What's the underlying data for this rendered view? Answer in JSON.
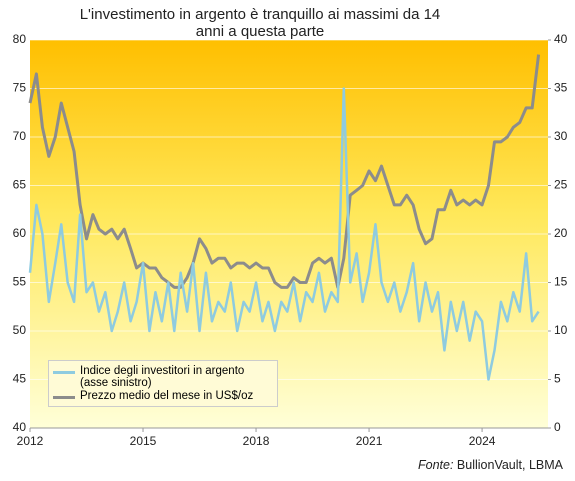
{
  "chart_data": {
    "type": "line",
    "title": "L'investimento in argento è tranquillo ai massimi da 14 anni a questa parte",
    "source_label": "Fonte:",
    "source": "BullionVault, LBMA",
    "x": [
      2012.0,
      2012.17,
      2012.33,
      2012.5,
      2012.67,
      2012.83,
      2013.0,
      2013.17,
      2013.33,
      2013.5,
      2013.67,
      2013.83,
      2014.0,
      2014.17,
      2014.33,
      2014.5,
      2014.67,
      2014.83,
      2015.0,
      2015.17,
      2015.33,
      2015.5,
      2015.67,
      2015.83,
      2016.0,
      2016.17,
      2016.33,
      2016.5,
      2016.67,
      2016.83,
      2017.0,
      2017.17,
      2017.33,
      2017.5,
      2017.67,
      2017.83,
      2018.0,
      2018.17,
      2018.33,
      2018.5,
      2018.67,
      2018.83,
      2019.0,
      2019.17,
      2019.33,
      2019.5,
      2019.67,
      2019.83,
      2020.0,
      2020.17,
      2020.33,
      2020.5,
      2020.67,
      2020.83,
      2021.0,
      2021.17,
      2021.33,
      2021.5,
      2021.67,
      2021.83,
      2022.0,
      2022.17,
      2022.33,
      2022.5,
      2022.67,
      2022.83,
      2023.0,
      2023.17,
      2023.33,
      2023.5,
      2023.67,
      2023.83,
      2024.0,
      2024.17,
      2024.33,
      2024.5,
      2024.67,
      2024.83,
      2025.0,
      2025.17,
      2025.33,
      2025.5
    ],
    "series": [
      {
        "name": "Indice degli investitori in argento (asse sinistro)",
        "color": "#8ecbe0",
        "axis": "y",
        "values": [
          56,
          63,
          60,
          53,
          57,
          61,
          55,
          53,
          62,
          54,
          55,
          52,
          54,
          50,
          52,
          55,
          51,
          53,
          57,
          50,
          54,
          51,
          55,
          50,
          56,
          52,
          57,
          50,
          56,
          51,
          53,
          52,
          55,
          50,
          53,
          52,
          55,
          51,
          53,
          50,
          53,
          52,
          55,
          51,
          54,
          53,
          56,
          52,
          54,
          53,
          75,
          55,
          58,
          53,
          56,
          61,
          55,
          53,
          55,
          52,
          54,
          57,
          51,
          55,
          52,
          54,
          48,
          53,
          50,
          53,
          49,
          52,
          51,
          45,
          48,
          53,
          51,
          54,
          52,
          58,
          51,
          52
        ]
      },
      {
        "name": "Prezzo medio del mese in US$/oz",
        "color": "#8c8c8c",
        "axis": "y2",
        "values": [
          33.5,
          36.5,
          31,
          28,
          30,
          33.5,
          31,
          28.5,
          23,
          19.5,
          22,
          20.5,
          20,
          20.5,
          19.5,
          20.5,
          18.5,
          16.5,
          17,
          16.5,
          16.5,
          15.5,
          15,
          14.5,
          14.5,
          15.5,
          17,
          19.5,
          18.5,
          17,
          17.5,
          17.5,
          16.5,
          17,
          17,
          16.5,
          17,
          16.5,
          16.5,
          15,
          14.5,
          14.5,
          15.5,
          15,
          15,
          17,
          17.5,
          17,
          17.5,
          14.5,
          17.5,
          24,
          24.5,
          25,
          26.5,
          25.5,
          27,
          25,
          23,
          23,
          24,
          23,
          20.5,
          19,
          19.5,
          22.5,
          22.5,
          24.5,
          23,
          23.5,
          23,
          23.5,
          23,
          25,
          29.5,
          29.5,
          30,
          31,
          31.5,
          33,
          33,
          38.5
        ]
      }
    ],
    "xlim": [
      2012,
      2025.75
    ],
    "xticks": [
      2012,
      2015,
      2018,
      2021,
      2024
    ],
    "ylim": [
      40,
      80
    ],
    "yticks": [
      40,
      45,
      50,
      55,
      60,
      65,
      70,
      75,
      80
    ],
    "y2lim": [
      0,
      40
    ],
    "y2ticks": [
      0,
      5,
      10,
      15,
      20,
      25,
      30,
      35,
      40
    ],
    "grid": true,
    "legend": "lower left"
  }
}
